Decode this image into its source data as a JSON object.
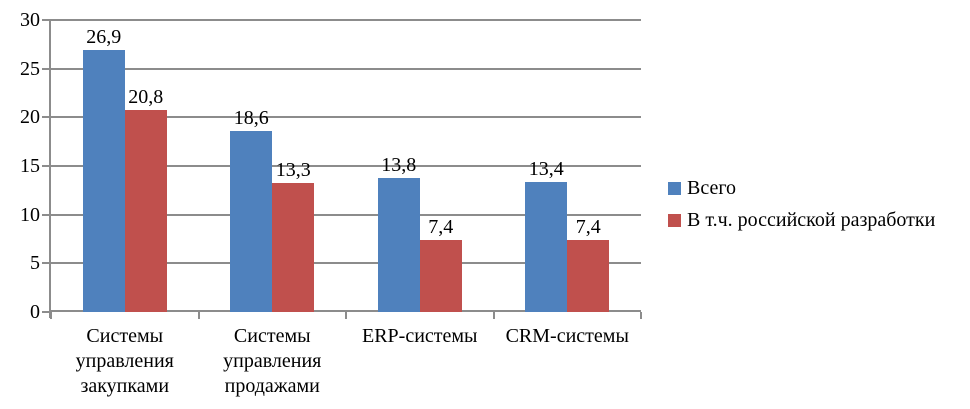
{
  "chart_data": {
    "type": "bar",
    "title": "",
    "categories": [
      "Системы\nуправления\nзакупками",
      "Системы\nуправления\nпродажами",
      "ERP-системы",
      "CRM-системы"
    ],
    "series": [
      {
        "name": "Всего",
        "color": "#4F81BD",
        "values": [
          26.9,
          18.6,
          13.8,
          13.4
        ],
        "labels": [
          "26,9",
          "18,6",
          "13,8",
          "13,4"
        ]
      },
      {
        "name": "В т.ч. российской разработки",
        "color": "#C0504D",
        "values": [
          20.8,
          13.3,
          7.4,
          7.4
        ],
        "labels": [
          "20,8",
          "13,3",
          "7,4",
          "7,4"
        ]
      }
    ],
    "y_axis": {
      "min": 0,
      "max": 30,
      "step": 5,
      "tick_labels": [
        "0",
        "5",
        "10",
        "15",
        "20",
        "25",
        "30"
      ]
    },
    "grid": true,
    "legend_position": "right"
  },
  "colors": {
    "grid": "#8C8C8C",
    "axis": "#8C8C8C",
    "text": "#000000",
    "background": "#FFFFFF"
  }
}
